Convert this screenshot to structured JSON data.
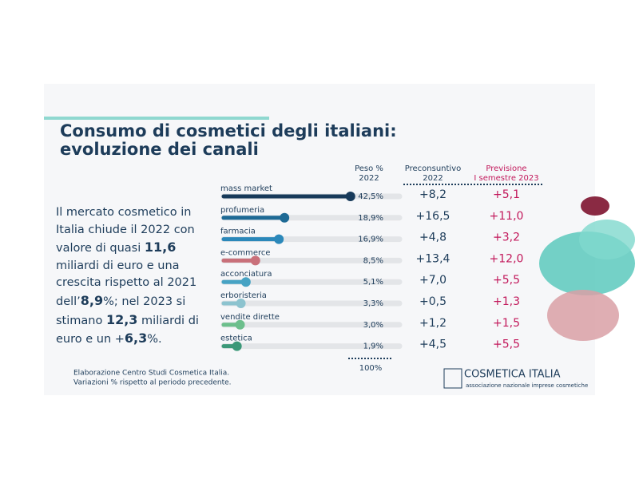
{
  "title_lines": [
    "Consumo di cosmetici degli italiani:",
    "evoluzione dei canali"
  ],
  "summary": [
    {
      "text": "Il mercato cosmetico in Italia chiude il 2022 con valore di quasi ",
      "bold": false
    },
    {
      "text": "11,6",
      "bold": true
    },
    {
      "text": " miliardi di euro e una crescita rispetto al 2021 dell’",
      "bold": false
    },
    {
      "text": "8,9",
      "bold": true
    },
    {
      "text": "%; nel 2023 si stimano ",
      "bold": false
    },
    {
      "text": "12,3",
      "bold": true
    },
    {
      "text": " miliardi di euro e un +",
      "bold": false
    },
    {
      "text": "6,3",
      "bold": true
    },
    {
      "text": "%.",
      "bold": false
    }
  ],
  "table": {
    "headers": {
      "peso": [
        "Peso %",
        "2022"
      ],
      "preconsuntivo": [
        "Preconsuntivo",
        "2022"
      ],
      "previsione": [
        "Previsione",
        "I semestre 2023"
      ]
    },
    "rows": [
      {
        "channel": "mass market",
        "color": "#173a5a",
        "peso": 42.5,
        "peso_label": "42,5%",
        "preconsuntivo": "+8,2",
        "previsione": "+5,1"
      },
      {
        "channel": "profumeria",
        "color": "#1e6a95",
        "peso": 18.9,
        "peso_label": "18,9%",
        "preconsuntivo": "+16,5",
        "previsione": "+11,0"
      },
      {
        "channel": "farmacia",
        "color": "#2b88ba",
        "peso": 16.9,
        "peso_label": "16,9%",
        "preconsuntivo": "+4,8",
        "previsione": "+3,2"
      },
      {
        "channel": "e-commerce",
        "color": "#c9707a",
        "peso": 8.5,
        "peso_label": "8,5%",
        "preconsuntivo": "+13,4",
        "previsione": "+12,0"
      },
      {
        "channel": "acconciatura",
        "color": "#47a3c4",
        "peso": 5.1,
        "peso_label": "5,1%",
        "preconsuntivo": "+7,0",
        "previsione": "+5,5"
      },
      {
        "channel": "erboristeria",
        "color": "#8cc3cf",
        "peso": 3.3,
        "peso_label": "3,3%",
        "preconsuntivo": "+0,5",
        "previsione": "+1,3"
      },
      {
        "channel": "vendite dirette",
        "color": "#6cbf8c",
        "peso": 3.0,
        "peso_label": "3,0%",
        "preconsuntivo": "+1,2",
        "previsione": "+1,5"
      },
      {
        "channel": "estetica",
        "color": "#3b9878",
        "peso": 1.9,
        "peso_label": "1,9%",
        "preconsuntivo": "+4,5",
        "previsione": "+5,5"
      }
    ],
    "total": "100%"
  },
  "footer": {
    "notes": [
      "Elaborazione Centro Studi Cosmetica Italia.",
      "Variazioni % rispetto al periodo precedente."
    ],
    "logo": "COSMETICA ITALIA",
    "tagline": "associazione nazionale imprese cosmetiche"
  }
}
